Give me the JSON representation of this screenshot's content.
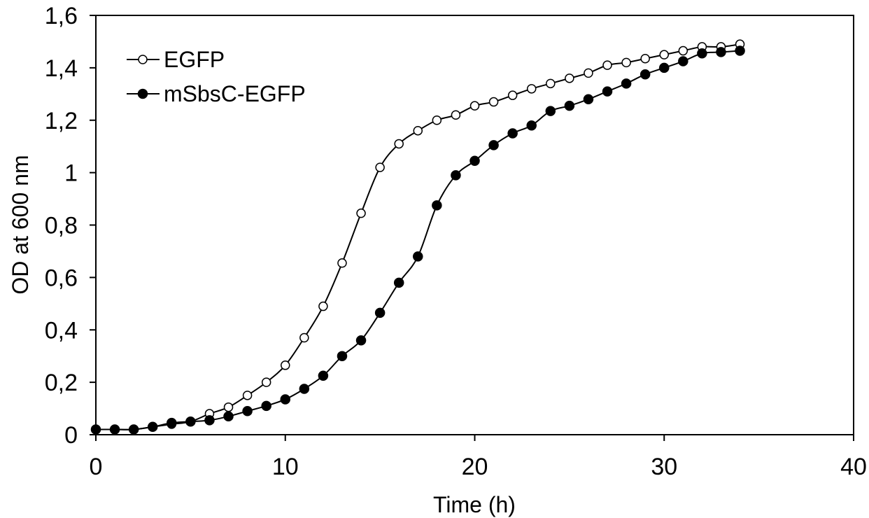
{
  "chart_data": {
    "type": "line",
    "title": "",
    "xlabel": "Time (h)",
    "ylabel": "OD at 600 nm",
    "xlim": [
      0,
      40
    ],
    "ylim": [
      0,
      1.6
    ],
    "x_ticks": [
      0,
      10,
      20,
      30,
      40
    ],
    "x_tick_labels": [
      "0",
      "10",
      "20",
      "30",
      "40"
    ],
    "y_ticks": [
      0,
      0.2,
      0.4,
      0.6,
      0.8,
      1,
      1.2,
      1.4,
      1.6
    ],
    "y_tick_labels": [
      "0",
      "0,2",
      "0,4",
      "0,6",
      "0,8",
      "1",
      "1,2",
      "1,4",
      "1,6"
    ],
    "grid": false,
    "legend_position": "top-left",
    "series": [
      {
        "name": "EGFP",
        "marker": "open-circle",
        "color": "#000000",
        "x": [
          0,
          1,
          2,
          3,
          4,
          5,
          6,
          7,
          8,
          9,
          10,
          11,
          12,
          13,
          14,
          15,
          16,
          17,
          18,
          19,
          20,
          21,
          22,
          23,
          24,
          25,
          26,
          27,
          28,
          29,
          30,
          31,
          32,
          33,
          34
        ],
        "y": [
          0.02,
          0.02,
          0.02,
          0.03,
          0.04,
          0.05,
          0.08,
          0.105,
          0.15,
          0.2,
          0.265,
          0.37,
          0.49,
          0.655,
          0.845,
          1.02,
          1.11,
          1.16,
          1.2,
          1.22,
          1.255,
          1.27,
          1.295,
          1.32,
          1.34,
          1.36,
          1.38,
          1.41,
          1.42,
          1.435,
          1.45,
          1.465,
          1.48,
          1.48,
          1.49
        ]
      },
      {
        "name": "mSbsC-EGFP",
        "marker": "filled-circle",
        "color": "#000000",
        "x": [
          0,
          1,
          2,
          3,
          4,
          5,
          6,
          7,
          8,
          9,
          10,
          11,
          12,
          13,
          14,
          15,
          16,
          17,
          18,
          19,
          20,
          21,
          22,
          23,
          24,
          25,
          26,
          27,
          28,
          29,
          30,
          31,
          32,
          33,
          34
        ],
        "y": [
          0.02,
          0.02,
          0.02,
          0.03,
          0.045,
          0.05,
          0.055,
          0.07,
          0.09,
          0.11,
          0.135,
          0.175,
          0.225,
          0.3,
          0.36,
          0.465,
          0.58,
          0.68,
          0.875,
          0.99,
          1.045,
          1.105,
          1.15,
          1.18,
          1.235,
          1.255,
          1.28,
          1.31,
          1.34,
          1.375,
          1.4,
          1.425,
          1.455,
          1.46,
          1.465
        ]
      }
    ]
  }
}
